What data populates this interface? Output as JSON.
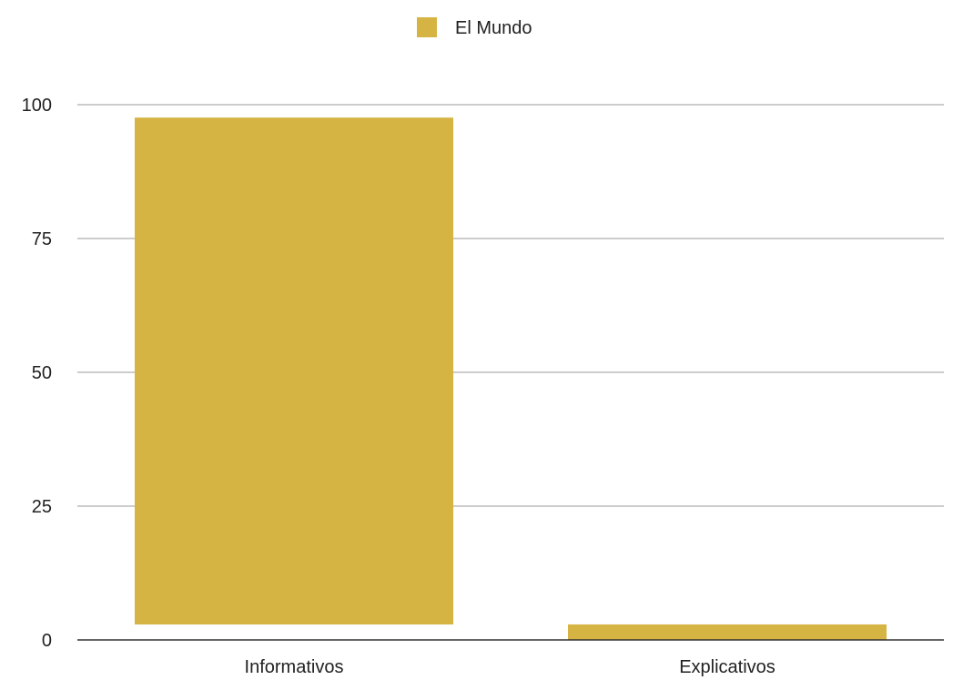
{
  "chart_data": {
    "type": "bar",
    "categories": [
      "Informativos",
      "Explicativos"
    ],
    "series": [
      {
        "name": "El Mundo",
        "values": [
          94.7,
          2.9
        ]
      }
    ],
    "title": "",
    "xlabel": "",
    "ylabel": "",
    "ylim": [
      0,
      100
    ],
    "yticks": [
      0,
      25,
      50,
      75,
      100
    ],
    "grid": true,
    "legend_position": "top-center",
    "colors": {
      "series": [
        "#d6b443"
      ],
      "grid": "#bbbbbb",
      "baseline": "#333333",
      "text": "#222222"
    }
  }
}
